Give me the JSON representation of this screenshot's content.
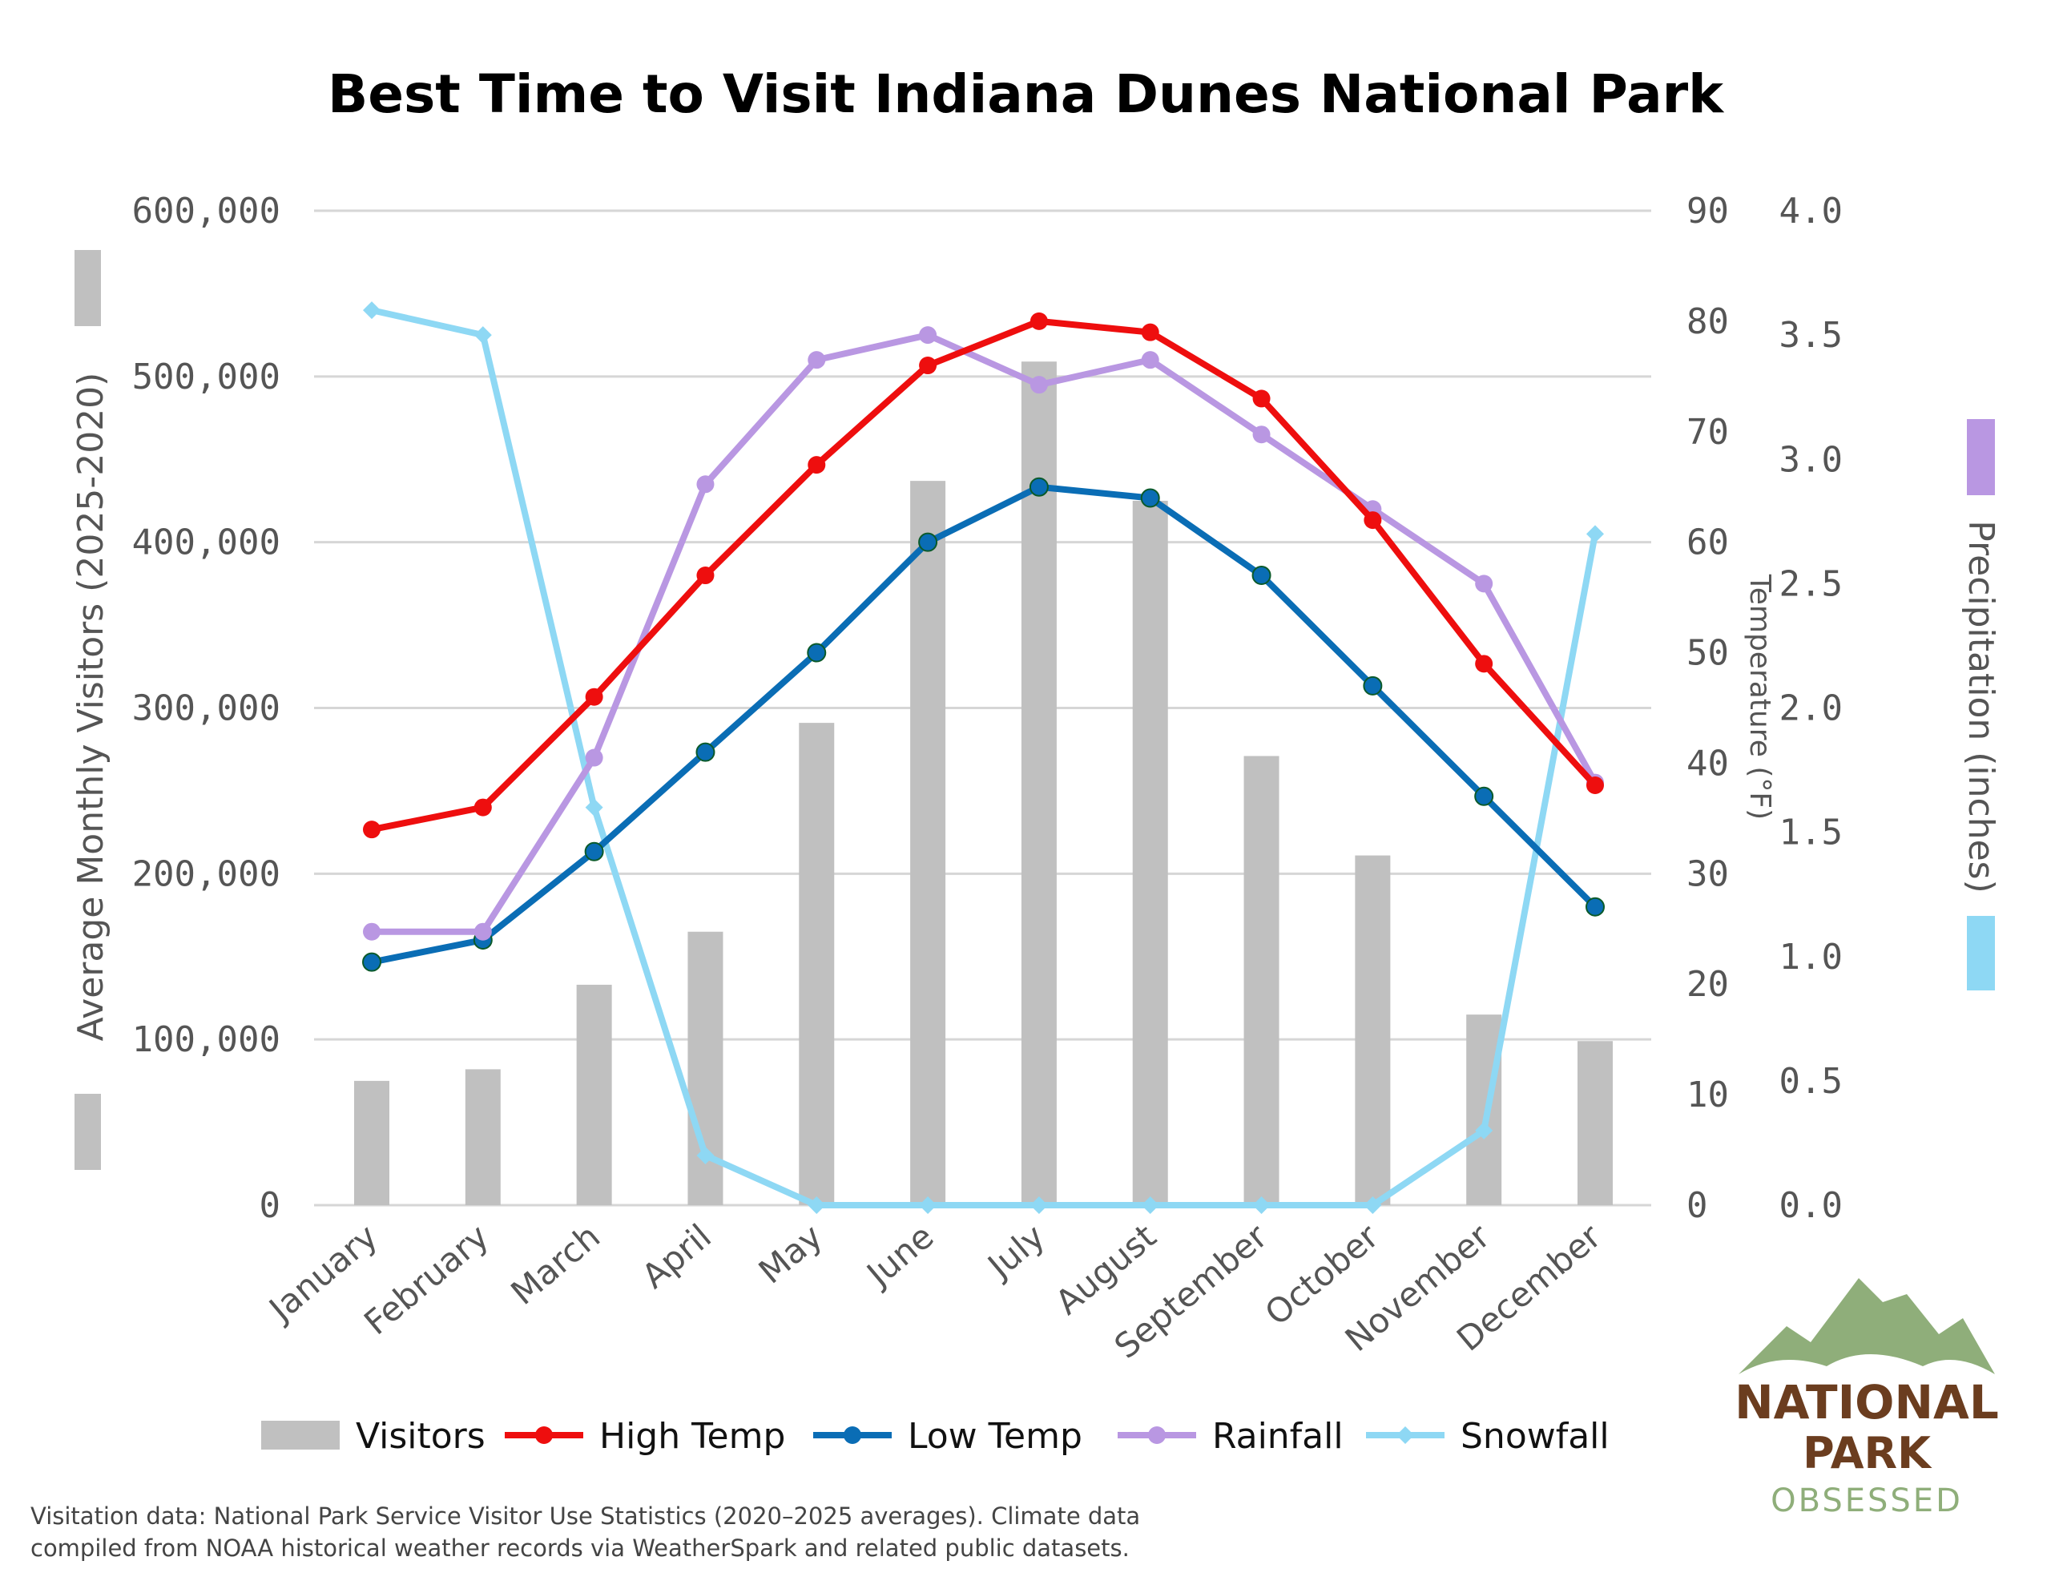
{
  "chart_data": {
    "type": "bar+line",
    "title": "Best Time to Visit Indiana Dunes National Park",
    "categories": [
      "January",
      "February",
      "March",
      "April",
      "May",
      "June",
      "July",
      "August",
      "September",
      "October",
      "November",
      "December"
    ],
    "left_axis": {
      "label": "Average Monthly Visitors (2025-2020)",
      "range": [
        0,
        600000
      ],
      "ticks": [
        "0",
        "100,000",
        "200,000",
        "300,000",
        "400,000",
        "500,000",
        "600,000"
      ]
    },
    "temp_axis": {
      "label": "Temperature (°F)",
      "range": [
        0,
        90
      ],
      "ticks": [
        "0",
        "10",
        "20",
        "30",
        "40",
        "50",
        "60",
        "70",
        "80",
        "90"
      ]
    },
    "precip_axis": {
      "label": "Precipitation (inches)",
      "range": [
        0,
        4
      ],
      "ticks": [
        "0.0",
        "0.5",
        "1.0",
        "1.5",
        "2.0",
        "2.5",
        "3.0",
        "3.5",
        "4.0"
      ]
    },
    "grid": true,
    "legend_position": "bottom",
    "series": [
      {
        "name": "Visitors",
        "type": "bar",
        "axis": "left",
        "color": "#c0c0c0",
        "values": [
          75000,
          82000,
          133000,
          165000,
          291000,
          437000,
          509000,
          425000,
          271000,
          211000,
          115000,
          99000
        ]
      },
      {
        "name": "High Temp",
        "type": "line",
        "axis": "temp",
        "color": "#ee0e0e",
        "values": [
          34,
          36,
          46,
          57,
          67,
          76,
          80,
          79,
          73,
          62,
          49,
          38
        ]
      },
      {
        "name": "Low Temp",
        "type": "line",
        "axis": "temp",
        "color": "#0a6db5",
        "values": [
          22,
          24,
          32,
          41,
          50,
          60,
          65,
          64,
          57,
          47,
          37,
          27
        ]
      },
      {
        "name": "Rainfall",
        "type": "line",
        "axis": "precip",
        "color": "#b997e2",
        "values": [
          1.1,
          1.1,
          1.8,
          2.9,
          3.4,
          3.5,
          3.3,
          3.4,
          3.1,
          2.8,
          2.5,
          1.7
        ]
      },
      {
        "name": "Snowfall",
        "type": "line",
        "axis": "precip",
        "color": "#8ed8f4",
        "values": [
          3.6,
          3.5,
          1.6,
          0.2,
          0,
          0,
          0,
          0,
          0,
          0,
          0.3,
          2.7
        ]
      }
    ]
  },
  "footnote": {
    "line1": "Visitation data: National Park Service Visitor Use Statistics (2020–2025 averages). Climate data",
    "line2": "compiled from NOAA historical weather records via WeatherSpark and related public datasets."
  },
  "logo": {
    "line1": "NATIONAL",
    "line2": "PARK",
    "line3": "OBSESSED"
  }
}
